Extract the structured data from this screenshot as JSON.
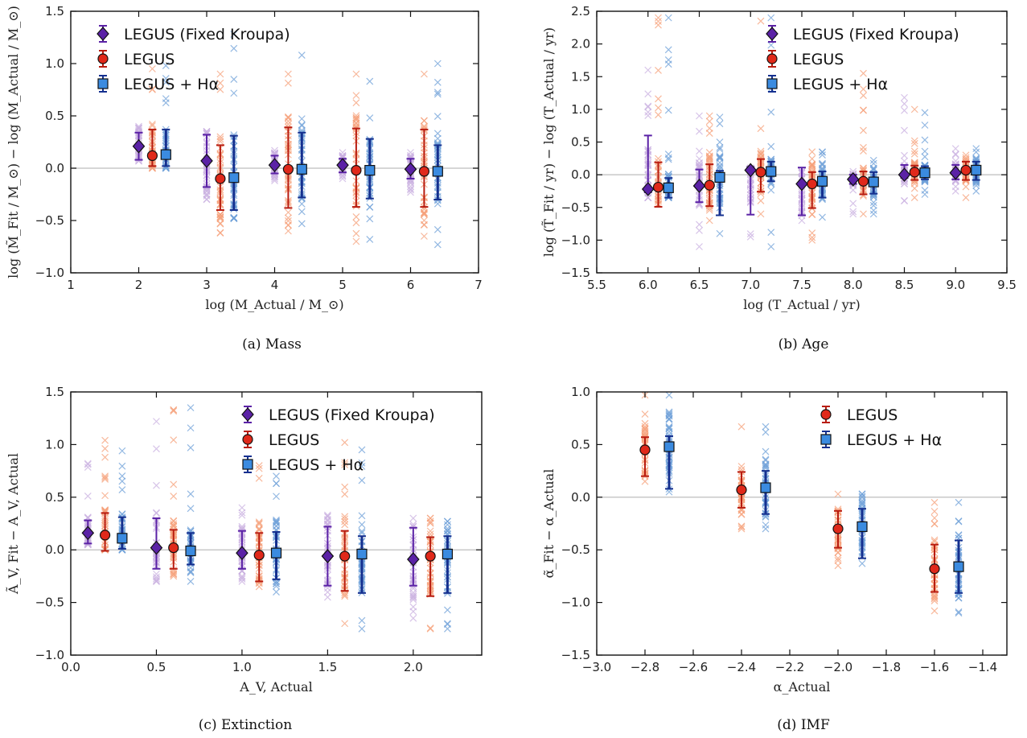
{
  "colors": {
    "kroupa": "#5b22a6",
    "kroupa_light": "#c9b0e0",
    "legus": "#e0291a",
    "legus_err": "#b81c10",
    "legus_light": "#f5a07a",
    "halpha": "#3b8be0",
    "halpha_err": "#15308f",
    "halpha_light": "#6fa0d8",
    "zero_line": "#c8c8c8"
  },
  "panels": [
    {
      "caption": "(a) Mass",
      "xlabel": "log (M_Actual / M_⊙)",
      "ylabel": "log (M̃_Fit / M_⊙) − log (M_Actual / M_⊙)",
      "xlim": [
        1,
        7
      ],
      "ylim": [
        -1.0,
        1.5
      ],
      "xticks": [
        "1",
        "2",
        "3",
        "4",
        "5",
        "6",
        "7"
      ],
      "yticks": [
        "−1.0",
        "−0.5",
        "0.0",
        "0.5",
        "1.0",
        "1.5"
      ],
      "legend": [
        "LEGUS (Fixed Kroupa)",
        "LEGUS",
        "LEGUS + Hα"
      ]
    },
    {
      "caption": "(b) Age",
      "xlabel": "log (T_Actual / yr)",
      "ylabel": "log (T̃_Fit / yr) − log (T_Actual / yr)",
      "xlim": [
        5.5,
        9.5
      ],
      "ylim": [
        -1.5,
        2.5
      ],
      "xticks": [
        "5.5",
        "6.0",
        "6.5",
        "7.0",
        "7.5",
        "8.0",
        "8.5",
        "9.0",
        "9.5"
      ],
      "yticks": [
        "−1.5",
        "−1.0",
        "−0.5",
        "0.0",
        "0.5",
        "1.0",
        "1.5",
        "2.0",
        "2.5"
      ],
      "legend": [
        "LEGUS (Fixed Kroupa)",
        "LEGUS",
        "LEGUS + Hα"
      ]
    },
    {
      "caption": "(c) Extinction",
      "xlabel": "A_V, Actual",
      "ylabel": "Ã_V, Fit − A_V, Actual",
      "xlim": [
        0.0,
        2.4
      ],
      "ylim": [
        -1.0,
        1.5
      ],
      "xticks": [
        "0.0",
        "0.5",
        "1.0",
        "1.5",
        "2.0"
      ],
      "yticks": [
        "−1.0",
        "−0.5",
        "0.0",
        "0.5",
        "1.0",
        "1.5"
      ],
      "legend": [
        "LEGUS (Fixed Kroupa)",
        "LEGUS",
        "LEGUS + Hα"
      ]
    },
    {
      "caption": "(d) IMF",
      "xlabel": "α_Actual",
      "ylabel": "α̃_Fit − α_Actual",
      "xlim": [
        -3.0,
        -1.3
      ],
      "ylim": [
        -1.5,
        1.0
      ],
      "xticks": [
        "−3.0",
        "−2.8",
        "−2.6",
        "−2.4",
        "−2.2",
        "−2.0",
        "−1.8",
        "−1.6",
        "−1.4"
      ],
      "yticks": [
        "−1.5",
        "−1.0",
        "−0.5",
        "0.0",
        "0.5",
        "1.0"
      ],
      "legend": [
        "LEGUS",
        "LEGUS + Hα"
      ]
    }
  ],
  "chart_data": [
    {
      "type": "scatter",
      "title": "(a) Mass",
      "xlim": [
        1,
        7
      ],
      "ylim": [
        -1.0,
        1.5
      ],
      "series": [
        {
          "name": "LEGUS (Fixed Kroupa)",
          "marker": "diamond",
          "x": [
            2,
            3,
            4,
            5,
            6
          ],
          "y": [
            0.21,
            0.07,
            0.03,
            0.03,
            -0.01
          ],
          "err_low": [
            0.13,
            0.25,
            0.08,
            0.07,
            0.09
          ],
          "err_high": [
            0.13,
            0.25,
            0.09,
            0.06,
            0.1
          ],
          "scatter_range": [
            [
              0.07,
              0.4
            ],
            [
              -0.3,
              0.35
            ],
            [
              -0.12,
              0.17
            ],
            [
              -0.1,
              0.15
            ],
            [
              -0.23,
              0.15
            ]
          ]
        },
        {
          "name": "LEGUS",
          "marker": "circle",
          "x": [
            2.2,
            3.2,
            4.2,
            5.2,
            6.2
          ],
          "y": [
            0.12,
            -0.1,
            -0.01,
            -0.02,
            -0.03
          ],
          "err_low": [
            0.1,
            0.3,
            0.37,
            0.35,
            0.34
          ],
          "err_high": [
            0.25,
            0.32,
            0.4,
            0.4,
            0.4
          ],
          "scatter_range": [
            [
              0.0,
              0.95
            ],
            [
              -0.62,
              0.9
            ],
            [
              -0.6,
              0.9
            ],
            [
              -0.7,
              0.9
            ],
            [
              -0.65,
              0.9
            ]
          ]
        },
        {
          "name": "LEGUS + Hα",
          "marker": "square",
          "x": [
            2.4,
            3.4,
            4.4,
            5.4,
            6.4
          ],
          "y": [
            0.13,
            -0.09,
            -0.01,
            -0.02,
            -0.03
          ],
          "err_low": [
            0.11,
            0.31,
            0.27,
            0.27,
            0.27
          ],
          "err_high": [
            0.24,
            0.4,
            0.35,
            0.3,
            0.25
          ],
          "scatter_range": [
            [
              0.0,
              0.98
            ],
            [
              -0.48,
              1.28
            ],
            [
              -0.53,
              1.08
            ],
            [
              -0.68,
              0.83
            ],
            [
              -0.73,
              1.0
            ]
          ]
        }
      ]
    },
    {
      "type": "scatter",
      "title": "(b) Age",
      "xlim": [
        5.5,
        9.5
      ],
      "ylim": [
        -1.5,
        2.5
      ],
      "series": [
        {
          "name": "LEGUS (Fixed Kroupa)",
          "marker": "diamond",
          "x": [
            6.0,
            6.5,
            7.0,
            7.5,
            8.0,
            8.5,
            9.0
          ],
          "y": [
            -0.22,
            -0.17,
            0.07,
            -0.14,
            -0.07,
            0.0,
            0.03
          ],
          "err_low": [
            0.05,
            0.25,
            0.68,
            0.48,
            0.07,
            0.05,
            0.1
          ],
          "err_high": [
            0.82,
            0.25,
            0.05,
            0.25,
            0.07,
            0.15,
            0.12
          ],
          "scatter_range": [
            [
              -0.35,
              1.6
            ],
            [
              -1.1,
              0.9
            ],
            [
              -0.95,
              0.1
            ],
            [
              -0.7,
              0.05
            ],
            [
              -0.6,
              0.05
            ],
            [
              -0.4,
              1.18
            ],
            [
              -0.25,
              0.4
            ]
          ]
        },
        {
          "name": "LEGUS",
          "marker": "circle",
          "x": [
            6.1,
            6.6,
            7.1,
            7.6,
            8.1,
            8.6,
            9.1
          ],
          "y": [
            -0.19,
            -0.16,
            0.04,
            -0.14,
            -0.1,
            0.04,
            0.07
          ],
          "err_low": [
            0.3,
            0.32,
            0.3,
            0.37,
            0.2,
            0.12,
            0.15
          ],
          "err_high": [
            0.38,
            0.32,
            0.2,
            0.18,
            0.15,
            0.1,
            0.13
          ],
          "scatter_range": [
            [
              -0.45,
              2.4
            ],
            [
              -0.7,
              0.9
            ],
            [
              -0.6,
              2.35
            ],
            [
              -1.0,
              0.35
            ],
            [
              -0.6,
              1.55
            ],
            [
              -0.35,
              1.0
            ],
            [
              -0.35,
              0.3
            ]
          ]
        },
        {
          "name": "LEGUS + Hα",
          "marker": "square",
          "x": [
            6.2,
            6.7,
            7.2,
            7.7,
            8.2,
            8.7,
            9.2
          ],
          "y": [
            -0.2,
            -0.04,
            0.05,
            -0.1,
            -0.11,
            0.03,
            0.07
          ],
          "err_low": [
            0.15,
            0.58,
            0.15,
            0.25,
            0.18,
            0.1,
            0.15
          ],
          "err_high": [
            0.15,
            0.1,
            0.15,
            0.15,
            0.15,
            0.1,
            0.13
          ],
          "scatter_range": [
            [
              -0.35,
              2.4
            ],
            [
              -0.9,
              0.88
            ],
            [
              -1.1,
              2.4
            ],
            [
              -0.65,
              0.35
            ],
            [
              -0.6,
              0.22
            ],
            [
              -0.3,
              0.95
            ],
            [
              -0.25,
              0.4
            ]
          ]
        }
      ]
    },
    {
      "type": "scatter",
      "title": "(c) Extinction",
      "xlim": [
        0.0,
        2.4
      ],
      "ylim": [
        -1.0,
        1.5
      ],
      "series": [
        {
          "name": "LEGUS (Fixed Kroupa)",
          "marker": "diamond",
          "x": [
            0.1,
            0.5,
            1.0,
            1.5,
            2.0
          ],
          "y": [
            0.16,
            0.02,
            -0.03,
            -0.06,
            -0.09
          ],
          "err_low": [
            0.1,
            0.2,
            0.15,
            0.28,
            0.25
          ],
          "err_high": [
            0.12,
            0.28,
            0.21,
            0.28,
            0.3
          ],
          "scatter_range": [
            [
              0.05,
              0.82
            ],
            [
              -0.3,
              1.22
            ],
            [
              -0.3,
              0.4
            ],
            [
              -0.45,
              0.33
            ],
            [
              -0.65,
              0.3
            ]
          ]
        },
        {
          "name": "LEGUS",
          "marker": "circle",
          "x": [
            0.2,
            0.6,
            1.1,
            1.6,
            2.1
          ],
          "y": [
            0.14,
            0.02,
            -0.05,
            -0.06,
            -0.06
          ],
          "err_low": [
            0.15,
            0.2,
            0.25,
            0.33,
            0.38
          ],
          "err_high": [
            0.21,
            0.17,
            0.21,
            0.24,
            0.18
          ],
          "scatter_range": [
            [
              0.0,
              1.04
            ],
            [
              -0.25,
              1.33
            ],
            [
              -0.35,
              0.8
            ],
            [
              -0.7,
              1.02
            ],
            [
              -0.75,
              0.3
            ]
          ]
        },
        {
          "name": "LEGUS + Hα",
          "marker": "square",
          "x": [
            0.3,
            0.7,
            1.2,
            1.7,
            2.2
          ],
          "y": [
            0.11,
            -0.01,
            -0.03,
            -0.04,
            -0.04
          ],
          "err_low": [
            0.1,
            0.13,
            0.25,
            0.37,
            0.37
          ],
          "err_high": [
            0.2,
            0.17,
            0.2,
            0.17,
            0.17
          ],
          "scatter_range": [
            [
              0.0,
              0.94
            ],
            [
              -0.3,
              1.35
            ],
            [
              -0.4,
              0.7
            ],
            [
              -0.75,
              0.95
            ],
            [
              -0.75,
              0.27
            ]
          ]
        }
      ]
    },
    {
      "type": "scatter",
      "title": "(d) IMF",
      "xlim": [
        -3.0,
        -1.3
      ],
      "ylim": [
        -1.5,
        1.0
      ],
      "series": [
        {
          "name": "LEGUS",
          "marker": "circle",
          "x": [
            -2.8,
            -2.4,
            -2.0,
            -1.6
          ],
          "y": [
            0.45,
            0.07,
            -0.3,
            -0.68
          ],
          "err_low": [
            0.25,
            0.17,
            0.18,
            0.22
          ],
          "err_high": [
            0.12,
            0.17,
            0.17,
            0.23
          ],
          "scatter_range": [
            [
              0.15,
              0.97
            ],
            [
              -0.3,
              0.67
            ],
            [
              -0.65,
              0.03
            ],
            [
              -1.08,
              -0.05
            ]
          ]
        },
        {
          "name": "LEGUS + Hα",
          "marker": "square",
          "x": [
            -2.7,
            -2.3,
            -1.9,
            -1.5
          ],
          "y": [
            0.48,
            0.09,
            -0.28,
            -0.66
          ],
          "err_low": [
            0.4,
            0.25,
            0.3,
            0.25
          ],
          "err_high": [
            0.1,
            0.16,
            0.17,
            0.25
          ],
          "scatter_range": [
            [
              0.05,
              0.97
            ],
            [
              -0.3,
              0.67
            ],
            [
              -0.63,
              0.03
            ],
            [
              -1.1,
              -0.05
            ]
          ]
        }
      ]
    }
  ]
}
